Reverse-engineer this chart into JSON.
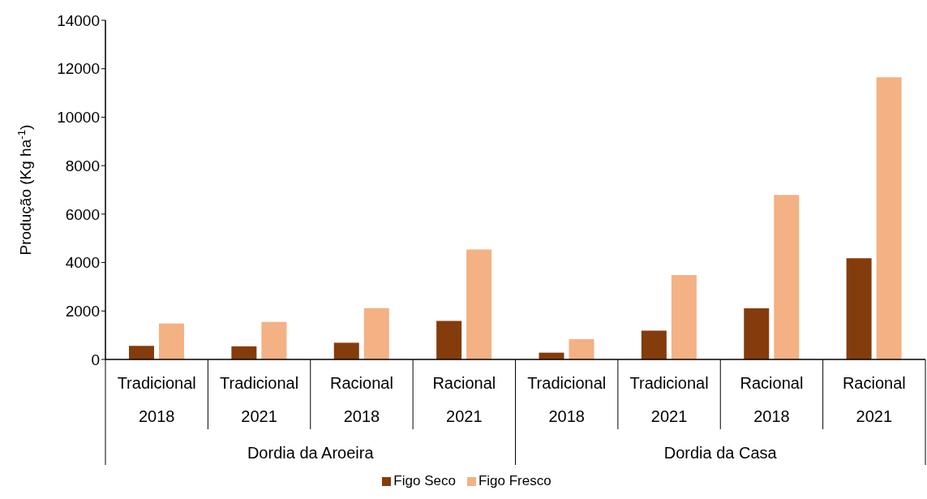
{
  "chart_data": {
    "type": "bar",
    "ylabel": "Produção (Kg ha$^{-1}$)",
    "categories": [
      "Tradicional\n2018",
      "Tradicional\n2021",
      "Racional\n2018",
      "Racional\n2021",
      "Tradicional\n2018",
      "Tradicional\n2021",
      "Racional\n2018",
      "Racional\n2021"
    ],
    "annotations": [
      "Dordia da Aroeira",
      "Dordia da Casa"
    ],
    "series": [
      {
        "name": "Figo Seco",
        "color": "#843c0c",
        "values": [
          560,
          540,
          690,
          1590,
          280,
          1190,
          2110,
          4180
        ]
      },
      {
        "name": "Figo Fresco",
        "color": "#f4b183",
        "values": [
          1480,
          1550,
          2120,
          4540,
          840,
          3480,
          6790,
          11650
        ]
      }
    ],
    "ylim": [
      0,
      14000
    ],
    "yticks": [
      0,
      2000,
      4000,
      6000,
      8000,
      10000,
      12000,
      14000
    ],
    "grid": false,
    "legend": "bottom"
  }
}
